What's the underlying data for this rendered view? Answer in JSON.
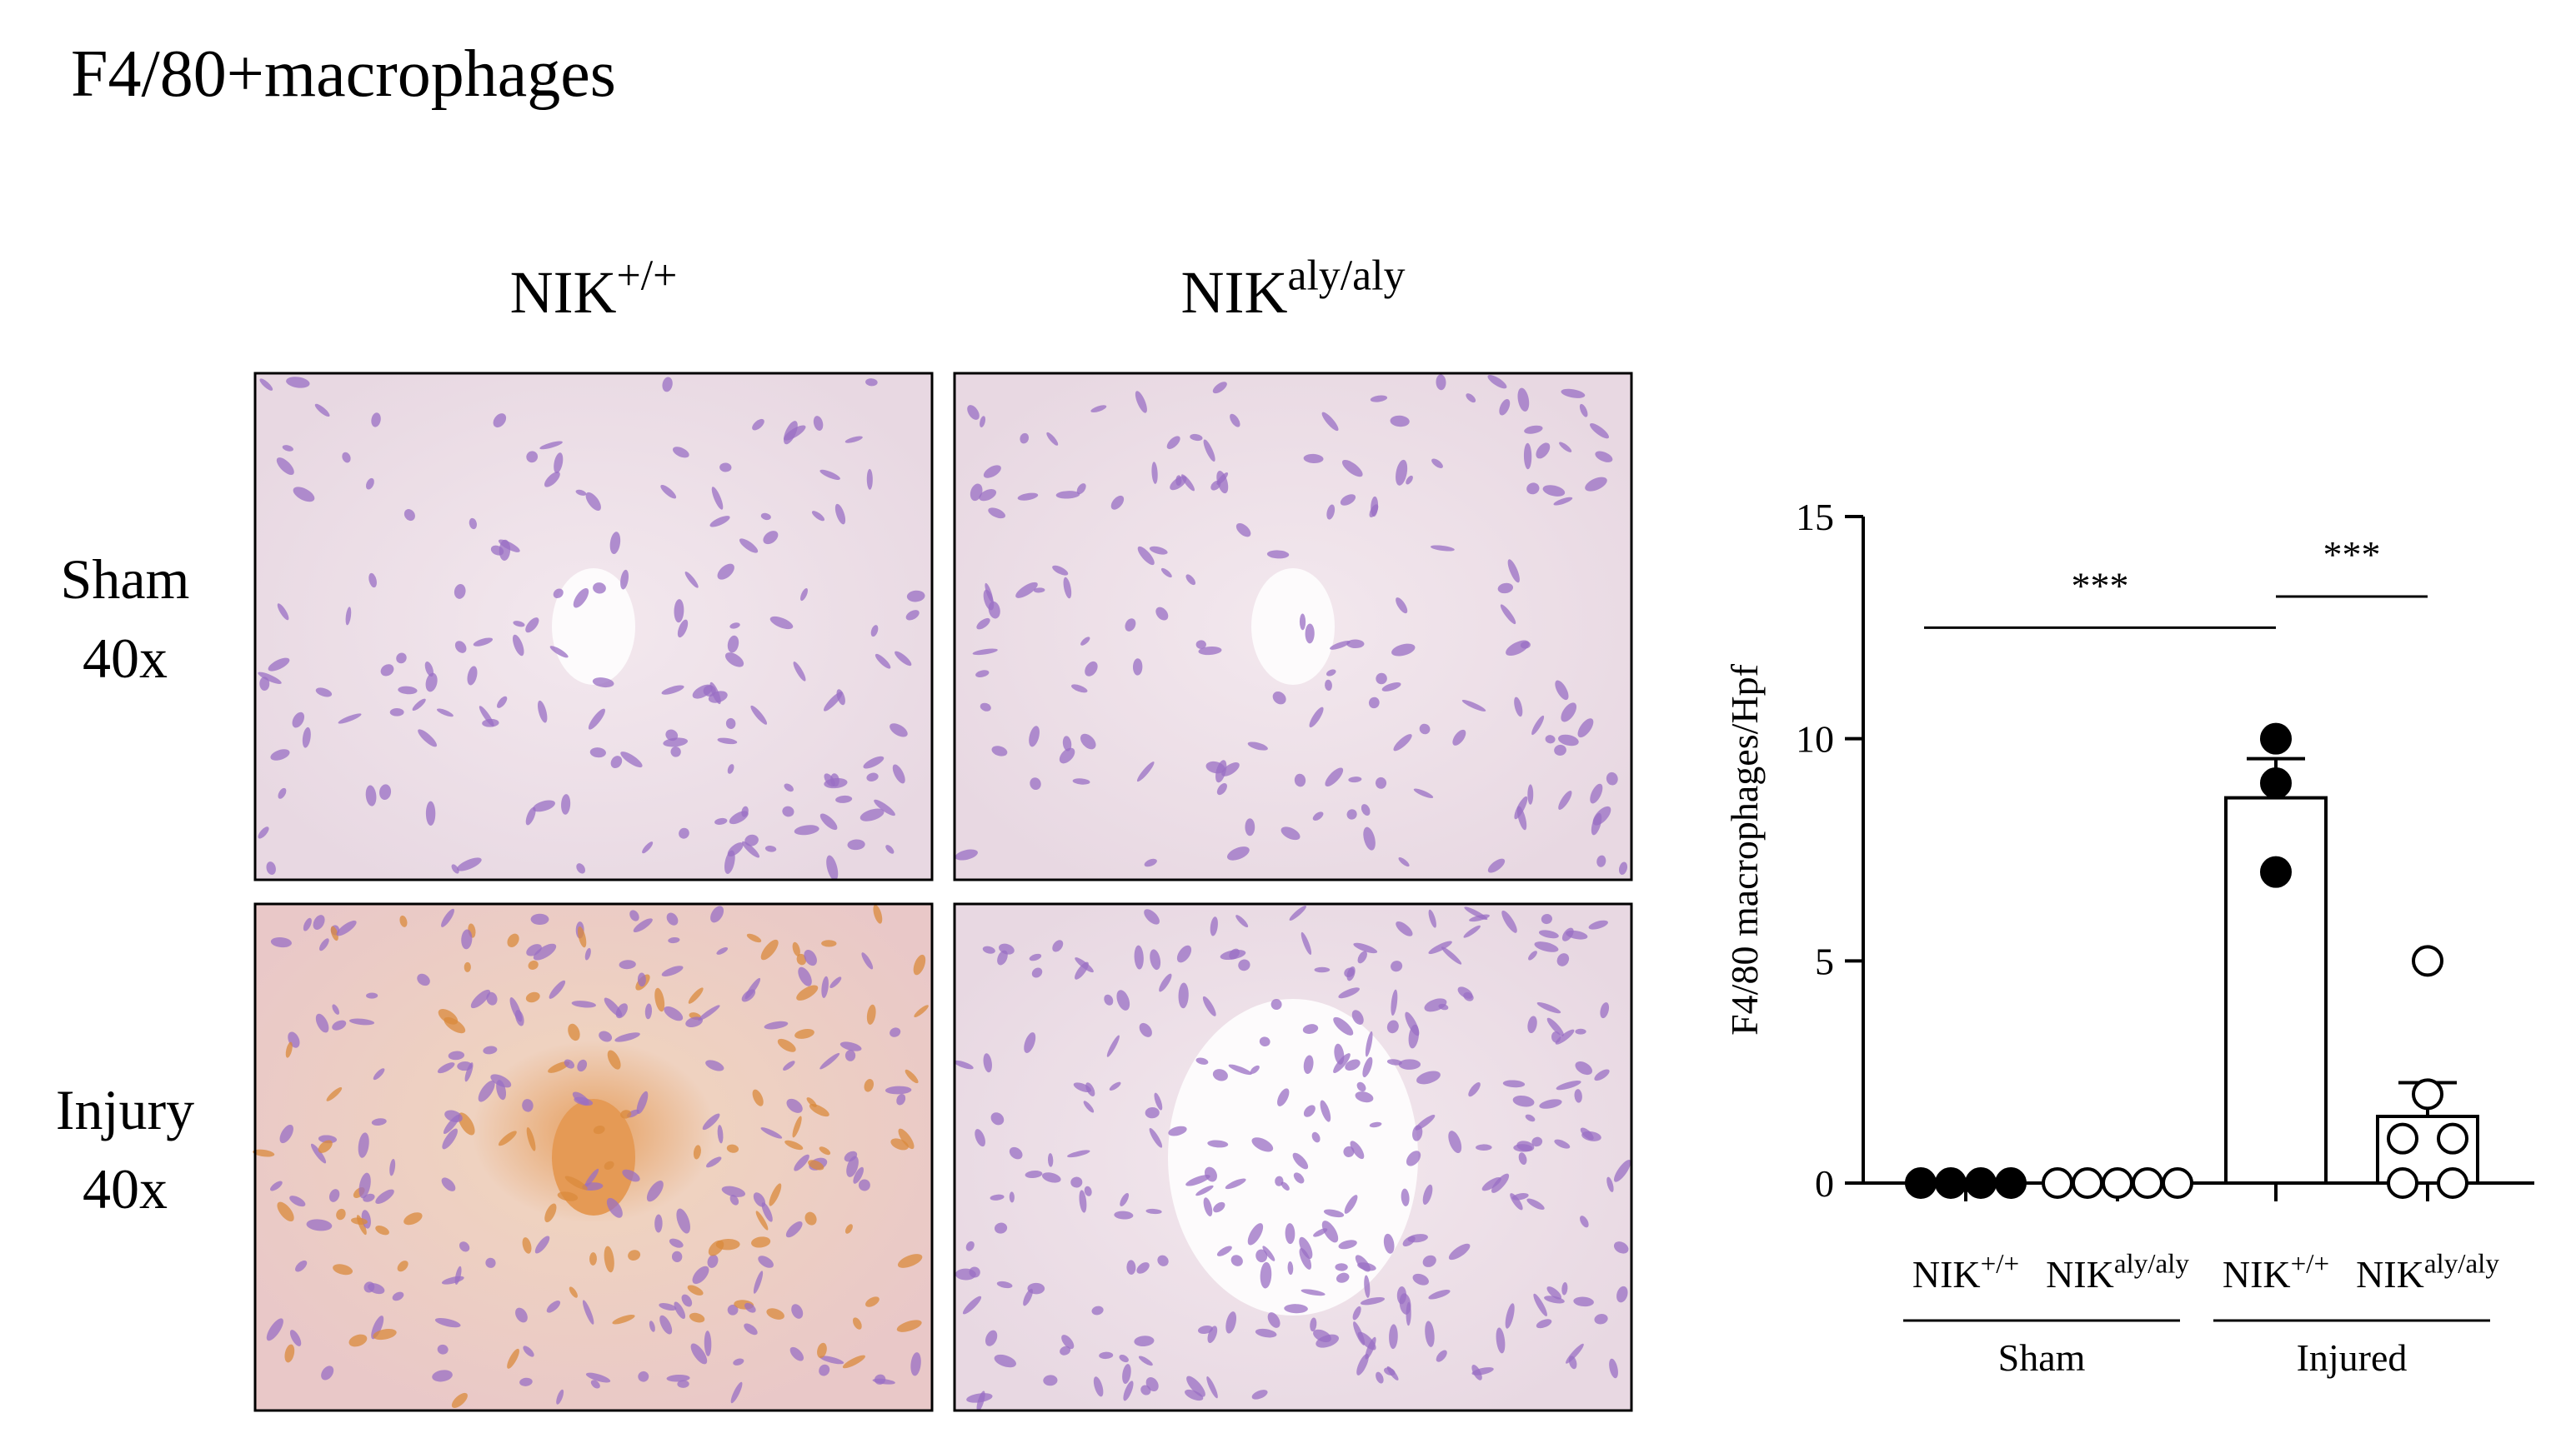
{
  "title": "F4/80+macrophages",
  "columns": [
    {
      "base": "NIK",
      "sup": "+/+"
    },
    {
      "base": "NIK",
      "sup": "aly/aly"
    }
  ],
  "rows": [
    {
      "lines": [
        "Sham",
        "40x"
      ]
    },
    {
      "lines": [
        "Injury",
        "40x"
      ]
    }
  ],
  "chart_data": {
    "type": "bar",
    "ylabel": "F4/80 macrophages/Hpf",
    "categories": [
      {
        "base": "NIK",
        "sup": "+/+"
      },
      {
        "base": "NIK",
        "sup": "aly/aly"
      },
      {
        "base": "NIK",
        "sup": "+/+"
      },
      {
        "base": "NIK",
        "sup": "aly/aly"
      }
    ],
    "groups": [
      "Sham",
      "Injured"
    ],
    "values": [
      0,
      0,
      8.67,
      1.5
    ],
    "errors": [
      0,
      0,
      0.88,
      0.76
    ],
    "points": [
      [
        0,
        0,
        0,
        0
      ],
      [
        0,
        0,
        0,
        0,
        0
      ],
      [
        10,
        9,
        7
      ],
      [
        5,
        2,
        1,
        1,
        0,
        0
      ]
    ],
    "filled": [
      true,
      false,
      true,
      false
    ],
    "color": "#000000",
    "ylim": [
      0,
      15
    ],
    "yticks": [
      0,
      5,
      10,
      15
    ],
    "brackets": [
      {
        "label": "***",
        "from": 0,
        "to": 2,
        "y": 12.5
      },
      {
        "label": "***",
        "from": 2,
        "to": 3,
        "y": 13.2
      }
    ]
  }
}
